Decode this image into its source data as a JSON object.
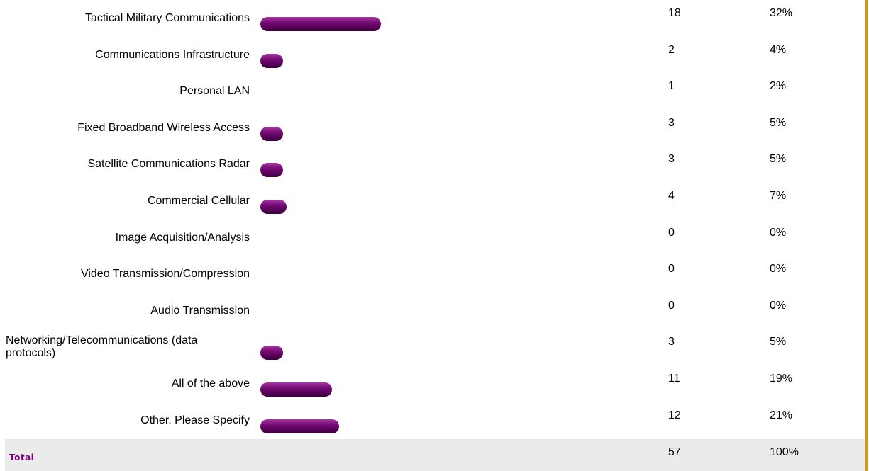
{
  "chart_data": {
    "type": "bar",
    "orientation": "horizontal",
    "categories": [
      "Tactical Military Communications",
      "Communications Infrastructure",
      "Personal LAN",
      "Fixed Broadband Wireless Access",
      "Satellite Communications Radar",
      "Commercial Cellular",
      "Image Acquisition/Analysis",
      "Video Transmission/Compression",
      "Audio Transmission",
      "Networking/Telecommunications (data protocols)",
      "All of the above",
      "Other, Please Specify"
    ],
    "values": [
      18,
      2,
      1,
      3,
      3,
      4,
      0,
      0,
      0,
      3,
      11,
      12
    ],
    "percent_labels": [
      "32%",
      "4%",
      "2%",
      "5%",
      "5%",
      "7%",
      "0%",
      "0%",
      "0%",
      "5%",
      "19%",
      "21%"
    ],
    "percents": [
      32,
      4,
      2,
      5,
      5,
      7,
      0,
      0,
      0,
      5,
      19,
      21
    ],
    "colors": {
      "bar": "#6a006a",
      "total_label": "#800080",
      "accent_border": "#d99a00"
    },
    "total": {
      "label": "Total",
      "count": "57",
      "percent": "100%"
    }
  }
}
